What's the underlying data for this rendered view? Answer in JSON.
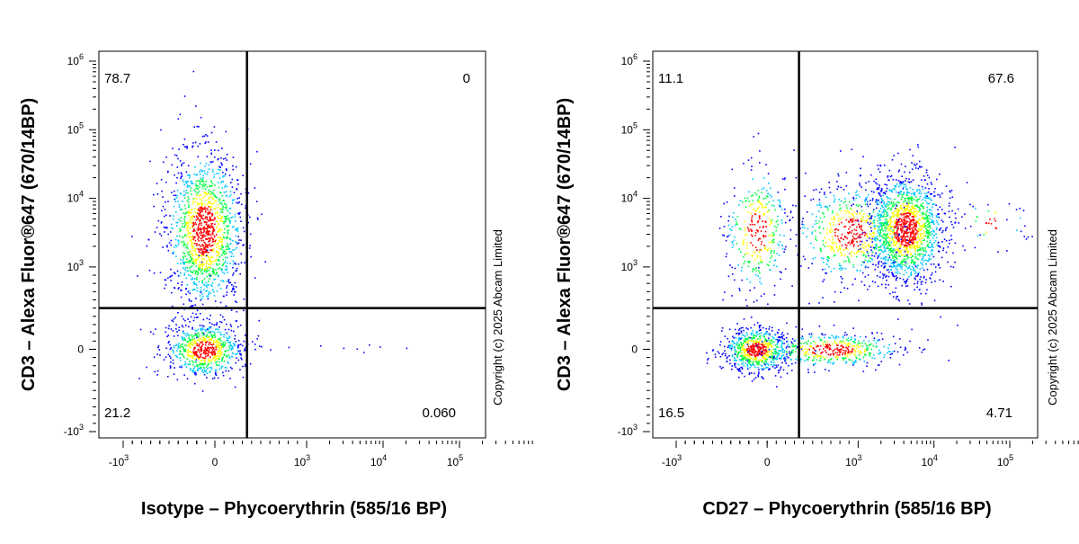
{
  "copyright": "Copyright (c) 2025 Abcam Limited",
  "colors": {
    "density_low": "#0000ff",
    "density_mid_low": "#00c8ff",
    "density_mid": "#00ff40",
    "density_mid_high": "#ffff00",
    "density_high": "#ff0000",
    "axis": "#000000",
    "gate_line": "#000000"
  },
  "chart_data": [
    {
      "type": "scatter",
      "xlabel": "Isotype – Phycoerythrin (585/16 BP)",
      "ylabel": "CD3 – Alexa Fluor®647 (670/14BP)",
      "x_scale": "biexponential",
      "y_scale": "biexponential",
      "x_ticks": [
        {
          "v": -1000,
          "base": "-10",
          "exp": "3"
        },
        {
          "v": 0,
          "base": "0",
          "exp": ""
        },
        {
          "v": 1000,
          "base": "10",
          "exp": "3"
        },
        {
          "v": 10000,
          "base": "10",
          "exp": "4"
        },
        {
          "v": 100000,
          "base": "10",
          "exp": "5"
        }
      ],
      "y_ticks": [
        {
          "v": -1000,
          "base": "-10",
          "exp": "3"
        },
        {
          "v": 0,
          "base": "0",
          "exp": ""
        },
        {
          "v": 1000,
          "base": "10",
          "exp": "3"
        },
        {
          "v": 10000,
          "base": "10",
          "exp": "4"
        },
        {
          "v": 100000,
          "base": "10",
          "exp": "5"
        },
        {
          "v": 1000000,
          "base": "10",
          "exp": "6"
        }
      ],
      "gate_x": 350,
      "gate_y": 500,
      "quadrants": {
        "upper_left": "78.7",
        "upper_right": "0",
        "lower_left": "21.2",
        "lower_right": "0.060"
      },
      "populations": [
        {
          "x": -120,
          "y": 3500,
          "n": 1400,
          "spread_x": 0.07,
          "spread_y": 0.16
        },
        {
          "x": -120,
          "y": 0,
          "n": 700,
          "spread_x": 0.07,
          "spread_y": 0.055
        }
      ],
      "scatter_points": [
        [
          -150,
          1200
        ],
        [
          -160,
          700
        ],
        [
          -100,
          1500
        ],
        [
          -110,
          500
        ],
        [
          -90,
          250
        ],
        [
          -130,
          200
        ],
        [
          -120,
          -300
        ],
        [
          -140,
          -500
        ],
        [
          -90,
          1800
        ],
        [
          -180,
          1500
        ],
        [
          -60,
          900
        ]
      ],
      "sparse_points": [
        [
          500,
          40
        ],
        [
          800,
          30
        ],
        [
          1500,
          50
        ],
        [
          3000,
          20
        ],
        [
          4500,
          10
        ],
        [
          6500,
          60
        ],
        [
          9000,
          35
        ],
        [
          20000,
          20
        ],
        [
          5500,
          -30
        ],
        [
          600,
          0
        ]
      ]
    },
    {
      "type": "scatter",
      "xlabel": "CD27 – Phycoerythrin (585/16 BP)",
      "ylabel": "CD3 – Alexa Fluor®647 (670/14BP)",
      "x_scale": "biexponential",
      "y_scale": "biexponential",
      "x_ticks": [
        {
          "v": -1000,
          "base": "-10",
          "exp": "3"
        },
        {
          "v": 0,
          "base": "0",
          "exp": ""
        },
        {
          "v": 1000,
          "base": "10",
          "exp": "3"
        },
        {
          "v": 10000,
          "base": "10",
          "exp": "4"
        },
        {
          "v": 100000,
          "base": "10",
          "exp": "5"
        }
      ],
      "y_ticks": [
        {
          "v": -1000,
          "base": "-10",
          "exp": "3"
        },
        {
          "v": 0,
          "base": "0",
          "exp": ""
        },
        {
          "v": 1000,
          "base": "10",
          "exp": "3"
        },
        {
          "v": 10000,
          "base": "10",
          "exp": "4"
        },
        {
          "v": 100000,
          "base": "10",
          "exp": "5"
        },
        {
          "v": 1000000,
          "base": "10",
          "exp": "6"
        }
      ],
      "gate_x": 350,
      "gate_y": 500,
      "quadrants": {
        "upper_left": "11.1",
        "upper_right": "67.6",
        "lower_left": "16.5",
        "lower_right": "4.71"
      },
      "populations": [
        {
          "x": -120,
          "y": 3300,
          "n": 350,
          "spread_x": 0.06,
          "spread_y": 0.13
        },
        {
          "x": 4200,
          "y": 3600,
          "n": 1500,
          "spread_x": 0.07,
          "spread_y": 0.11
        },
        {
          "x": 900,
          "y": 3200,
          "n": 550,
          "spread_x": 0.1,
          "spread_y": 0.1
        },
        {
          "x": -120,
          "y": 0,
          "n": 700,
          "spread_x": 0.06,
          "spread_y": 0.045
        },
        {
          "x": 700,
          "y": 0,
          "n": 450,
          "spread_x": 0.13,
          "spread_y": 0.035
        },
        {
          "x": 60000,
          "y": 4500,
          "n": 40,
          "spread_x": 0.06,
          "spread_y": 0.05
        }
      ],
      "scatter_points": [
        [
          500,
          10000
        ],
        [
          2000,
          9000
        ],
        [
          8000,
          11000
        ],
        [
          1500,
          1500
        ],
        [
          3000,
          1200
        ],
        [
          6000,
          900
        ],
        [
          800,
          700
        ],
        [
          -100,
          1000
        ],
        [
          -120,
          600
        ],
        [
          -80,
          300
        ],
        [
          2000,
          200
        ],
        [
          5000,
          250
        ],
        [
          12000,
          400
        ],
        [
          20000,
          300
        ],
        [
          30000,
          4000
        ],
        [
          40000,
          3000
        ],
        [
          90000,
          5000
        ],
        [
          120000,
          7000
        ],
        [
          15000,
          2000
        ],
        [
          25000,
          1800
        ],
        [
          -600,
          0
        ],
        [
          -400,
          20
        ],
        [
          3000,
          700
        ],
        [
          10000,
          600
        ]
      ],
      "sparse_points": []
    }
  ]
}
